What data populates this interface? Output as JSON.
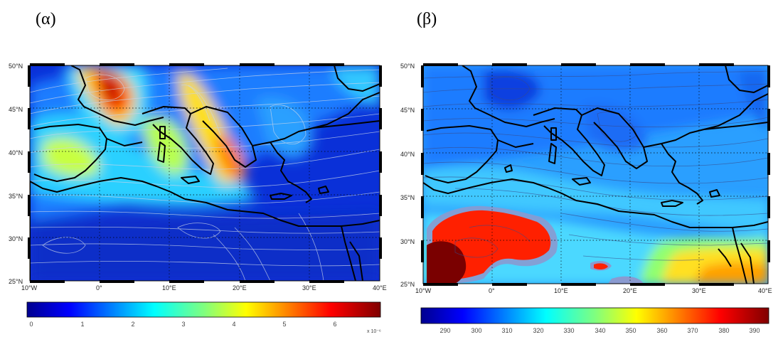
{
  "panels": [
    {
      "label": "(α)",
      "lat_labels": [
        "50°N",
        "45°N",
        "40°N",
        "35°N",
        "30°N",
        "25°N"
      ],
      "lon_labels": [
        "10°W",
        "0°",
        "10°E",
        "20°E",
        "30°E",
        "40°E"
      ],
      "colorbar": {
        "ticks": [
          "0",
          "1",
          "2",
          "3",
          "4",
          "5",
          "6"
        ],
        "multiplier": "x 10⁻⁶"
      }
    },
    {
      "label": "(β)",
      "lat_labels": [
        "50°N",
        "45°N",
        "40°N",
        "35°N",
        "30°N",
        "25°N"
      ],
      "lon_labels": [
        "10°W",
        "0°",
        "10°E",
        "20°E",
        "30°E",
        "40°E"
      ],
      "colorbar": {
        "ticks": [
          "290",
          "300",
          "310",
          "320",
          "330",
          "340",
          "350",
          "360",
          "370",
          "380",
          "390"
        ]
      }
    }
  ],
  "colors": {
    "jet_dark_blue": "#00008f",
    "jet_blue": "#0040ff",
    "jet_cyan": "#00e5ff",
    "jet_yellow": "#ffff00",
    "jet_red": "#ff1a00",
    "jet_dark_red": "#800000"
  }
}
